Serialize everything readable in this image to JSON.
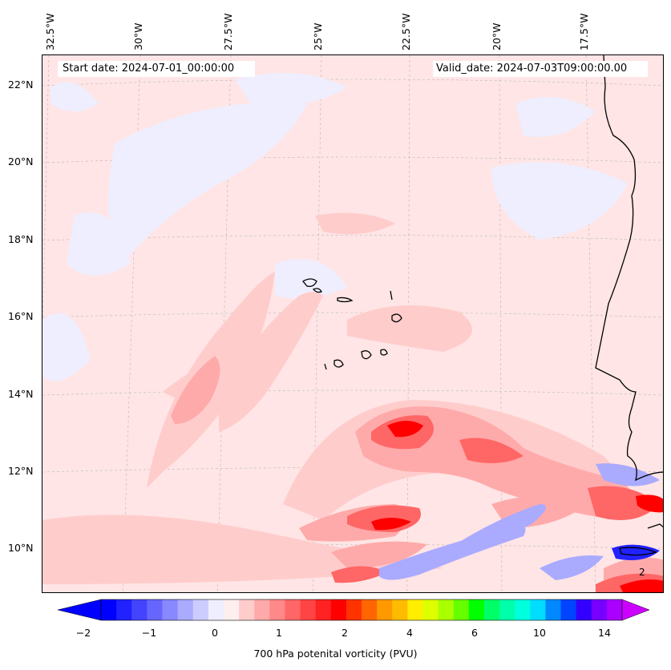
{
  "header": {
    "start_date": "Start date: 2024-07-01_00:00:00",
    "valid_date": "Valid_date: 2024-07-03T09:00:00.00"
  },
  "map": {
    "longitude_labels": [
      "32.5°W",
      "30°W",
      "27.5°W",
      "25°W",
      "22.5°W",
      "20°W",
      "17.5°W"
    ],
    "latitude_labels": [
      "22°N",
      "20°N",
      "18°N",
      "16°N",
      "14°N",
      "12°N",
      "10°N"
    ],
    "contour_label": "2",
    "background_color": "#ffe5e5"
  },
  "colorbar": {
    "label": "700 hPa potenital vorticity (PVU)",
    "tick_labels": [
      "−2",
      "−1",
      "0",
      "1",
      "2",
      "4",
      "6",
      "10",
      "14"
    ],
    "colors": [
      "#0000ff",
      "#2222ff",
      "#4444ff",
      "#6666ff",
      "#8888ff",
      "#aaaaff",
      "#ccccff",
      "#eeeeff",
      "#ffeeee",
      "#ffcccc",
      "#ffaaaa",
      "#ff8888",
      "#ff6666",
      "#ff4444",
      "#ff2222",
      "#ff0000",
      "#ff3300",
      "#ff6600",
      "#ff9900",
      "#ffbb00",
      "#ffee00",
      "#ddff00",
      "#aaff00",
      "#66ff00",
      "#00ff00",
      "#00ff66",
      "#00ffaa",
      "#00ffdd",
      "#00ddff",
      "#0088ff",
      "#0044ff",
      "#3300ff",
      "#7700ff",
      "#aa00ff"
    ],
    "extend": "both",
    "min_color": "#0000ff",
    "max_color": "#cc00ff"
  }
}
